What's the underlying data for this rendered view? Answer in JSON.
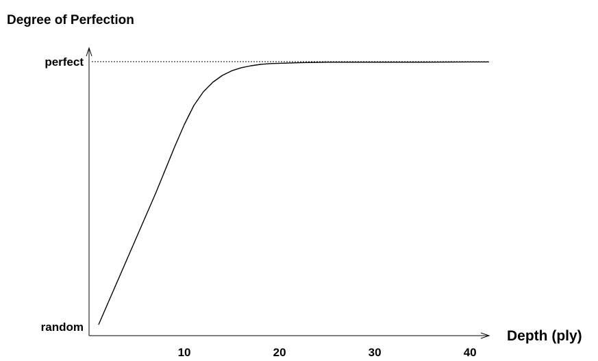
{
  "chart_data": {
    "type": "line",
    "title": "",
    "ylabel": "Degree of Perfection",
    "xlabel": "Depth (ply)",
    "xlim": [
      0,
      42
    ],
    "ylim": [
      0,
      1.02
    ],
    "x_ticks": [
      10,
      20,
      30,
      40
    ],
    "y_tick_labels": [
      {
        "value": 0,
        "label": "random"
      },
      {
        "value": 1,
        "label": "perfect"
      }
    ],
    "reference_line": {
      "y": 1,
      "style": "dotted"
    },
    "grid": false,
    "legend": "none",
    "series": [
      {
        "x": [
          1,
          4,
          7,
          9,
          10,
          11,
          12,
          13,
          14,
          15,
          16,
          17,
          18,
          19,
          20,
          22,
          25,
          30,
          35,
          40,
          42
        ],
        "y": [
          0.04,
          0.28,
          0.52,
          0.69,
          0.77,
          0.84,
          0.89,
          0.925,
          0.95,
          0.967,
          0.978,
          0.985,
          0.99,
          0.993,
          0.994,
          0.996,
          0.998,
          0.998,
          0.998,
          0.999,
          0.999
        ]
      }
    ]
  }
}
